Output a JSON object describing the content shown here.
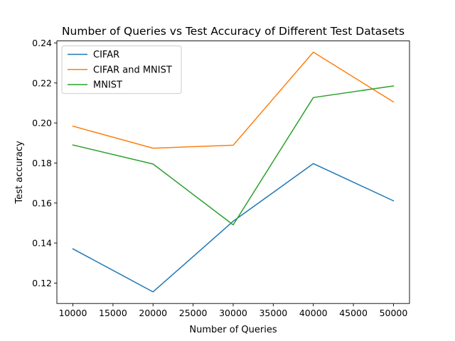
{
  "chart_data": {
    "type": "line",
    "title": "Number of Queries vs Test Accuracy of Different Test Datasets",
    "xlabel": "Number of Queries",
    "ylabel": "Test accuracy",
    "x": [
      10000,
      20000,
      30000,
      40000,
      50000
    ],
    "xlim": [
      8000,
      52000
    ],
    "ylim": [
      0.1098,
      0.241
    ],
    "xticks": [
      10000,
      15000,
      20000,
      25000,
      30000,
      35000,
      40000,
      45000,
      50000
    ],
    "xtick_labels": [
      "10000",
      "15000",
      "20000",
      "25000",
      "30000",
      "35000",
      "40000",
      "45000",
      "50000"
    ],
    "yticks": [
      0.12,
      0.14,
      0.16,
      0.18,
      0.2,
      0.22,
      0.24
    ],
    "ytick_labels": [
      "0.12",
      "0.14",
      "0.16",
      "0.18",
      "0.20",
      "0.22",
      "0.24"
    ],
    "grid": false,
    "legend_position": "top-left",
    "series": [
      {
        "name": "CIFAR",
        "color": "#1f77b4",
        "values": [
          0.1371,
          0.1156,
          0.1509,
          0.1797,
          0.1611
        ]
      },
      {
        "name": "CIFAR and MNIST",
        "color": "#ff7f0e",
        "values": [
          0.1984,
          0.1874,
          0.1889,
          0.2354,
          0.2105
        ]
      },
      {
        "name": "MNIST",
        "color": "#2ca02c",
        "values": [
          0.189,
          0.1795,
          0.1491,
          0.2127,
          0.2185
        ]
      }
    ]
  }
}
